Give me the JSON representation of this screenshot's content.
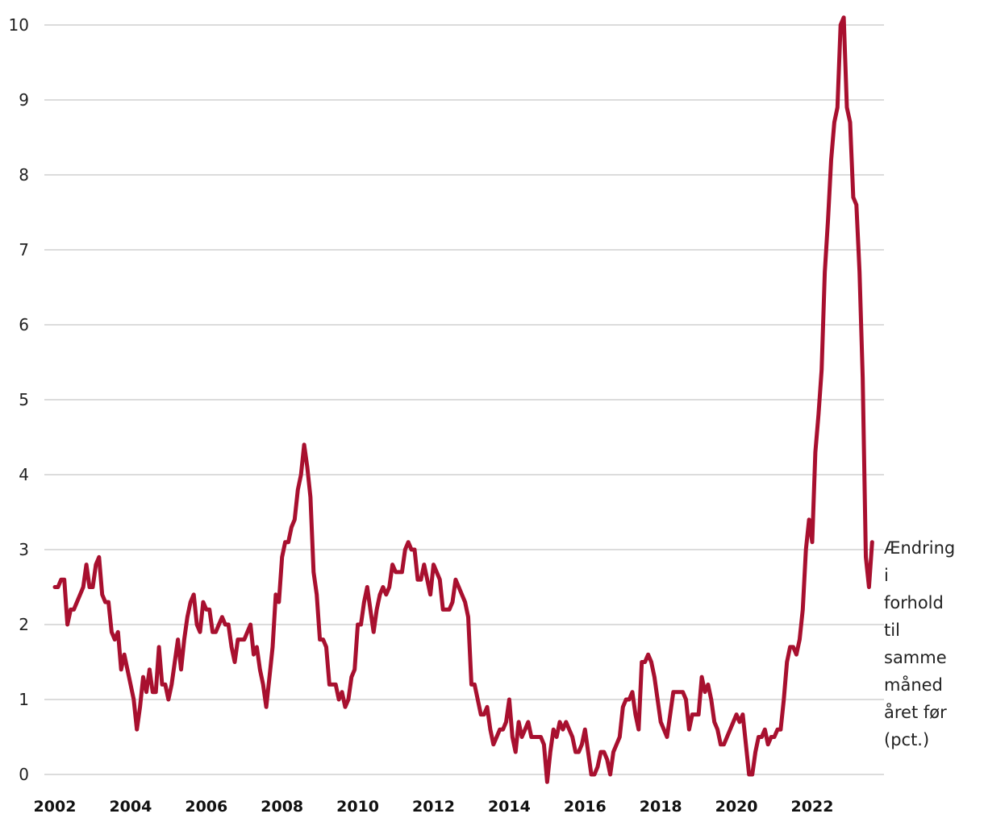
{
  "chart_data": {
    "type": "line",
    "title": "",
    "xlabel": "",
    "ylabel": "",
    "xlim": [
      2002,
      2023.5
    ],
    "ylim": [
      0,
      10
    ],
    "x_ticks": [
      "2002",
      "2004",
      "2006",
      "2008",
      "2010",
      "2012",
      "2014",
      "2016",
      "2018",
      "2020",
      "2022"
    ],
    "y_ticks": [
      "0",
      "1",
      "2",
      "3",
      "4",
      "5",
      "6",
      "7",
      "8",
      "9",
      "10"
    ],
    "grid": "horizontal",
    "colors": {
      "series": "#a8102f",
      "grid": "#c8c8c8"
    },
    "series": [
      {
        "name": "Ændring i forhold til samme måned året før (pct.)",
        "label_lines": [
          "Ændring",
          "i",
          "forhold",
          "til",
          "samme",
          "måned",
          "året før",
          "(pct.)"
        ],
        "x_start": "2002-01",
        "frequency": "monthly",
        "values": [
          2.5,
          2.5,
          2.6,
          2.6,
          2.0,
          2.2,
          2.2,
          2.3,
          2.4,
          2.5,
          2.8,
          2.5,
          2.5,
          2.8,
          2.9,
          2.4,
          2.3,
          2.3,
          1.9,
          1.8,
          1.9,
          1.4,
          1.6,
          1.4,
          1.2,
          1.0,
          0.6,
          0.9,
          1.3,
          1.1,
          1.4,
          1.1,
          1.1,
          1.7,
          1.2,
          1.2,
          1.0,
          1.2,
          1.5,
          1.8,
          1.4,
          1.8,
          2.1,
          2.3,
          2.4,
          2.0,
          1.9,
          2.3,
          2.2,
          2.2,
          1.9,
          1.9,
          2.0,
          2.1,
          2.0,
          2.0,
          1.7,
          1.5,
          1.8,
          1.8,
          1.8,
          1.9,
          2.0,
          1.6,
          1.7,
          1.4,
          1.2,
          0.9,
          1.3,
          1.7,
          2.4,
          2.3,
          2.9,
          3.1,
          3.1,
          3.3,
          3.4,
          3.8,
          4.0,
          4.4,
          4.1,
          3.7,
          2.7,
          2.4,
          1.8,
          1.8,
          1.7,
          1.2,
          1.2,
          1.2,
          1.0,
          1.1,
          0.9,
          1.0,
          1.3,
          1.4,
          2.0,
          2.0,
          2.3,
          2.5,
          2.2,
          1.9,
          2.2,
          2.4,
          2.5,
          2.4,
          2.5,
          2.8,
          2.7,
          2.7,
          2.7,
          3.0,
          3.1,
          3.0,
          3.0,
          2.6,
          2.6,
          2.8,
          2.6,
          2.4,
          2.8,
          2.7,
          2.6,
          2.2,
          2.2,
          2.2,
          2.3,
          2.6,
          2.5,
          2.4,
          2.3,
          2.1,
          1.2,
          1.2,
          1.0,
          0.8,
          0.8,
          0.9,
          0.6,
          0.4,
          0.5,
          0.6,
          0.6,
          0.7,
          1.0,
          0.5,
          0.3,
          0.7,
          0.5,
          0.6,
          0.7,
          0.5,
          0.5,
          0.5,
          0.5,
          0.4,
          -0.1,
          0.3,
          0.6,
          0.5,
          0.7,
          0.6,
          0.7,
          0.6,
          0.5,
          0.3,
          0.3,
          0.4,
          0.6,
          0.3,
          0.0,
          0.0,
          0.1,
          0.3,
          0.3,
          0.2,
          0.0,
          0.3,
          0.4,
          0.5,
          0.9,
          1.0,
          1.0,
          1.1,
          0.8,
          0.6,
          1.5,
          1.5,
          1.6,
          1.5,
          1.3,
          1.0,
          0.7,
          0.6,
          0.5,
          0.8,
          1.1,
          1.1,
          1.1,
          1.1,
          1.0,
          0.6,
          0.8,
          0.8,
          0.8,
          1.3,
          1.1,
          1.2,
          1.0,
          0.7,
          0.6,
          0.4,
          0.4,
          0.5,
          0.6,
          0.7,
          0.8,
          0.7,
          0.8,
          0.4,
          0.0,
          0.0,
          0.3,
          0.5,
          0.5,
          0.6,
          0.4,
          0.5,
          0.5,
          0.6,
          0.6,
          1.0,
          1.5,
          1.7,
          1.7,
          1.6,
          1.8,
          2.2,
          3.0,
          3.4,
          3.1,
          4.3,
          4.8,
          5.4,
          6.7,
          7.4,
          8.2,
          8.7,
          8.9,
          10.0,
          10.1,
          8.9,
          8.7,
          7.7,
          7.6,
          6.7,
          5.3,
          2.9,
          2.5,
          3.1
        ]
      }
    ]
  }
}
